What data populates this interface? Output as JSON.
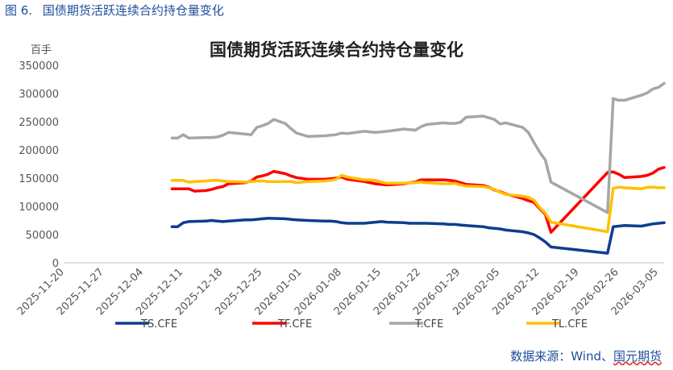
{
  "caption": {
    "label": "图 6.",
    "text": "国债期货活跃连续合约持仓量变化"
  },
  "source": {
    "prefix": "数据来源：Wind、",
    "underlined": "国元期货"
  },
  "chart_data": {
    "type": "line",
    "title": "国债期货活跃连续合约持仓量变化",
    "unit_label": "百手",
    "ylim": [
      0,
      350000
    ],
    "yticks": [
      0,
      50000,
      100000,
      150000,
      200000,
      250000,
      300000,
      350000
    ],
    "ytick_labels": [
      "0",
      "50000",
      "100000",
      "150000",
      "200000",
      "250000",
      "300000",
      "350000"
    ],
    "x_start": "2025-11-20",
    "x_end": "2026-03-06",
    "xtick_labels": [
      "2025-11-20",
      "2025-11-27",
      "2025-12-04",
      "2025-12-11",
      "2025-12-18",
      "2025-12-25",
      "2026-01-01",
      "2026-01-08",
      "2026-01-15",
      "2026-01-22",
      "2026-01-29",
      "2026-02-05",
      "2026-02-12",
      "2026-02-19",
      "2026-02-26",
      "2026-03-05"
    ],
    "legend_position": "bottom",
    "grid": false,
    "series": [
      {
        "name": "TS.CFE",
        "color": "#0d3d8f",
        "points": [
          [
            "2025-12-09",
            64000
          ],
          [
            "2025-12-10",
            64000
          ],
          [
            "2025-12-11",
            71000
          ],
          [
            "2025-12-12",
            73000
          ],
          [
            "2025-12-15",
            74000
          ],
          [
            "2025-12-16",
            75000
          ],
          [
            "2025-12-17",
            74000
          ],
          [
            "2025-12-18",
            73000
          ],
          [
            "2025-12-19",
            74000
          ],
          [
            "2025-12-22",
            76000
          ],
          [
            "2025-12-23",
            76000
          ],
          [
            "2025-12-24",
            77000
          ],
          [
            "2025-12-25",
            78000
          ],
          [
            "2025-12-26",
            79000
          ],
          [
            "2025-12-29",
            78000
          ],
          [
            "2025-12-30",
            77000
          ],
          [
            "2025-12-31",
            76000
          ],
          [
            "2026-01-02",
            75000
          ],
          [
            "2026-01-05",
            74000
          ],
          [
            "2026-01-06",
            74000
          ],
          [
            "2026-01-07",
            73000
          ],
          [
            "2026-01-08",
            71000
          ],
          [
            "2026-01-09",
            70000
          ],
          [
            "2026-01-12",
            70000
          ],
          [
            "2026-01-13",
            71000
          ],
          [
            "2026-01-14",
            72000
          ],
          [
            "2026-01-15",
            73000
          ],
          [
            "2026-01-16",
            72000
          ],
          [
            "2026-01-19",
            71000
          ],
          [
            "2026-01-20",
            70000
          ],
          [
            "2026-01-21",
            70000
          ],
          [
            "2026-01-22",
            70000
          ],
          [
            "2026-01-23",
            70000
          ],
          [
            "2026-01-26",
            69000
          ],
          [
            "2026-01-27",
            68000
          ],
          [
            "2026-01-28",
            68000
          ],
          [
            "2026-01-29",
            67000
          ],
          [
            "2026-01-30",
            66000
          ],
          [
            "2026-02-02",
            64000
          ],
          [
            "2026-02-03",
            62000
          ],
          [
            "2026-02-04",
            61000
          ],
          [
            "2026-02-05",
            60000
          ],
          [
            "2026-02-06",
            58000
          ],
          [
            "2026-02-09",
            55000
          ],
          [
            "2026-02-10",
            53000
          ],
          [
            "2026-02-11",
            50000
          ],
          [
            "2026-02-12",
            44000
          ],
          [
            "2026-02-13",
            37000
          ],
          [
            "2026-02-14",
            28000
          ],
          [
            "2026-02-24",
            17000
          ],
          [
            "2026-02-25",
            64000
          ],
          [
            "2026-02-26",
            65000
          ],
          [
            "2026-02-27",
            66000
          ],
          [
            "2026-03-02",
            65000
          ],
          [
            "2026-03-03",
            67000
          ],
          [
            "2026-03-04",
            69000
          ],
          [
            "2026-03-05",
            70000
          ],
          [
            "2026-03-06",
            71000
          ]
        ]
      },
      {
        "name": "TF.CFE",
        "color": "#ff0000",
        "points": [
          [
            "2025-12-09",
            131000
          ],
          [
            "2025-12-10",
            131000
          ],
          [
            "2025-12-11",
            131000
          ],
          [
            "2025-12-12",
            131000
          ],
          [
            "2025-12-13",
            127000
          ],
          [
            "2025-12-15",
            128000
          ],
          [
            "2025-12-16",
            130000
          ],
          [
            "2025-12-17",
            133000
          ],
          [
            "2025-12-18",
            135000
          ],
          [
            "2025-12-19",
            140000
          ],
          [
            "2025-12-22",
            142000
          ],
          [
            "2025-12-23",
            145000
          ],
          [
            "2025-12-24",
            152000
          ],
          [
            "2025-12-25",
            154000
          ],
          [
            "2025-12-26",
            157000
          ],
          [
            "2025-12-27",
            162000
          ],
          [
            "2025-12-29",
            158000
          ],
          [
            "2025-12-30",
            154000
          ],
          [
            "2025-12-31",
            151000
          ],
          [
            "2026-01-02",
            148000
          ],
          [
            "2026-01-05",
            148000
          ],
          [
            "2026-01-06",
            149000
          ],
          [
            "2026-01-07",
            150000
          ],
          [
            "2026-01-08",
            152000
          ],
          [
            "2026-01-09",
            148000
          ],
          [
            "2026-01-12",
            144000
          ],
          [
            "2026-01-13",
            142000
          ],
          [
            "2026-01-14",
            140000
          ],
          [
            "2026-01-15",
            139000
          ],
          [
            "2026-01-16",
            138000
          ],
          [
            "2026-01-19",
            140000
          ],
          [
            "2026-01-20",
            142000
          ],
          [
            "2026-01-21",
            143000
          ],
          [
            "2026-01-22",
            147000
          ],
          [
            "2026-01-23",
            147000
          ],
          [
            "2026-01-26",
            147000
          ],
          [
            "2026-01-27",
            146000
          ],
          [
            "2026-01-28",
            145000
          ],
          [
            "2026-01-29",
            142000
          ],
          [
            "2026-01-30",
            139000
          ],
          [
            "2026-02-02",
            137000
          ],
          [
            "2026-02-03",
            134000
          ],
          [
            "2026-02-04",
            129000
          ],
          [
            "2026-02-05",
            126000
          ],
          [
            "2026-02-06",
            122000
          ],
          [
            "2026-02-09",
            114000
          ],
          [
            "2026-02-10",
            110000
          ],
          [
            "2026-02-11",
            107000
          ],
          [
            "2026-02-12",
            96000
          ],
          [
            "2026-02-13",
            86000
          ],
          [
            "2026-02-14",
            54000
          ],
          [
            "2026-02-24",
            160000
          ],
          [
            "2026-02-25",
            161000
          ],
          [
            "2026-02-26",
            157000
          ],
          [
            "2026-02-27",
            151000
          ],
          [
            "2026-03-02",
            153000
          ],
          [
            "2026-03-03",
            155000
          ],
          [
            "2026-03-04",
            159000
          ],
          [
            "2026-03-05",
            166000
          ],
          [
            "2026-03-06",
            169000
          ]
        ]
      },
      {
        "name": "T.CFE",
        "color": "#a6a6a6",
        "points": [
          [
            "2025-12-09",
            221000
          ],
          [
            "2025-12-10",
            221000
          ],
          [
            "2025-12-11",
            227000
          ],
          [
            "2025-12-12",
            221000
          ],
          [
            "2025-12-15",
            222000
          ],
          [
            "2025-12-16",
            222000
          ],
          [
            "2025-12-17",
            223000
          ],
          [
            "2025-12-18",
            226000
          ],
          [
            "2025-12-19",
            231000
          ],
          [
            "2025-12-22",
            228000
          ],
          [
            "2025-12-23",
            227000
          ],
          [
            "2025-12-24",
            240000
          ],
          [
            "2025-12-25",
            243000
          ],
          [
            "2025-12-26",
            247000
          ],
          [
            "2025-12-27",
            254000
          ],
          [
            "2025-12-29",
            247000
          ],
          [
            "2025-12-30",
            238000
          ],
          [
            "2025-12-31",
            230000
          ],
          [
            "2026-01-02",
            224000
          ],
          [
            "2026-01-05",
            225000
          ],
          [
            "2026-01-06",
            226000
          ],
          [
            "2026-01-07",
            227000
          ],
          [
            "2026-01-08",
            230000
          ],
          [
            "2026-01-09",
            229000
          ],
          [
            "2026-01-12",
            233000
          ],
          [
            "2026-01-13",
            232000
          ],
          [
            "2026-01-14",
            231000
          ],
          [
            "2026-01-15",
            232000
          ],
          [
            "2026-01-16",
            233000
          ],
          [
            "2026-01-19",
            237000
          ],
          [
            "2026-01-20",
            236000
          ],
          [
            "2026-01-21",
            235000
          ],
          [
            "2026-01-22",
            241000
          ],
          [
            "2026-01-23",
            245000
          ],
          [
            "2026-01-26",
            248000
          ],
          [
            "2026-01-27",
            247000
          ],
          [
            "2026-01-28",
            247000
          ],
          [
            "2026-01-29",
            249000
          ],
          [
            "2026-01-30",
            258000
          ],
          [
            "2026-02-02",
            260000
          ],
          [
            "2026-02-03",
            257000
          ],
          [
            "2026-02-04",
            254000
          ],
          [
            "2026-02-05",
            246000
          ],
          [
            "2026-02-06",
            248000
          ],
          [
            "2026-02-09",
            240000
          ],
          [
            "2026-02-10",
            231000
          ],
          [
            "2026-02-11",
            213000
          ],
          [
            "2026-02-12",
            196000
          ],
          [
            "2026-02-13",
            182000
          ],
          [
            "2026-02-14",
            143000
          ],
          [
            "2026-02-24",
            89000
          ],
          [
            "2026-02-25",
            291000
          ],
          [
            "2026-02-26",
            288000
          ],
          [
            "2026-02-27",
            288000
          ],
          [
            "2026-03-02",
            297000
          ],
          [
            "2026-03-03",
            301000
          ],
          [
            "2026-03-04",
            308000
          ],
          [
            "2026-03-05",
            311000
          ],
          [
            "2026-03-06",
            318000
          ]
        ]
      },
      {
        "name": "TL.CFE",
        "color": "#ffc000",
        "points": [
          [
            "2025-12-09",
            146000
          ],
          [
            "2025-12-10",
            146000
          ],
          [
            "2025-12-11",
            146000
          ],
          [
            "2025-12-12",
            143000
          ],
          [
            "2025-12-15",
            145000
          ],
          [
            "2025-12-16",
            146000
          ],
          [
            "2025-12-17",
            146000
          ],
          [
            "2025-12-18",
            145000
          ],
          [
            "2025-12-19",
            144000
          ],
          [
            "2025-12-22",
            143000
          ],
          [
            "2025-12-23",
            144000
          ],
          [
            "2025-12-24",
            145000
          ],
          [
            "2025-12-25",
            145000
          ],
          [
            "2025-12-26",
            144000
          ],
          [
            "2025-12-29",
            144000
          ],
          [
            "2025-12-30",
            144000
          ],
          [
            "2025-12-31",
            142000
          ],
          [
            "2026-01-02",
            144000
          ],
          [
            "2026-01-05",
            145000
          ],
          [
            "2026-01-06",
            146000
          ],
          [
            "2026-01-07",
            148000
          ],
          [
            "2026-01-08",
            155000
          ],
          [
            "2026-01-09",
            152000
          ],
          [
            "2026-01-12",
            147000
          ],
          [
            "2026-01-13",
            147000
          ],
          [
            "2026-01-14",
            146000
          ],
          [
            "2026-01-15",
            143000
          ],
          [
            "2026-01-16",
            141000
          ],
          [
            "2026-01-19",
            141000
          ],
          [
            "2026-01-20",
            142000
          ],
          [
            "2026-01-21",
            142000
          ],
          [
            "2026-01-22",
            143000
          ],
          [
            "2026-01-23",
            142000
          ],
          [
            "2026-01-26",
            140000
          ],
          [
            "2026-01-27",
            140000
          ],
          [
            "2026-01-28",
            141000
          ],
          [
            "2026-01-29",
            138000
          ],
          [
            "2026-01-30",
            136000
          ],
          [
            "2026-02-02",
            135000
          ],
          [
            "2026-02-03",
            133000
          ],
          [
            "2026-02-04",
            130000
          ],
          [
            "2026-02-05",
            125000
          ],
          [
            "2026-02-06",
            121000
          ],
          [
            "2026-02-09",
            118000
          ],
          [
            "2026-02-10",
            116000
          ],
          [
            "2026-02-11",
            111000
          ],
          [
            "2026-02-12",
            98000
          ],
          [
            "2026-02-13",
            88000
          ],
          [
            "2026-02-14",
            72000
          ],
          [
            "2026-02-24",
            55000
          ],
          [
            "2026-02-25",
            132000
          ],
          [
            "2026-02-26",
            134000
          ],
          [
            "2026-02-27",
            133000
          ],
          [
            "2026-03-02",
            131000
          ],
          [
            "2026-03-03",
            134000
          ],
          [
            "2026-03-04",
            134000
          ],
          [
            "2026-03-05",
            133000
          ],
          [
            "2026-03-06",
            133000
          ]
        ]
      }
    ]
  }
}
